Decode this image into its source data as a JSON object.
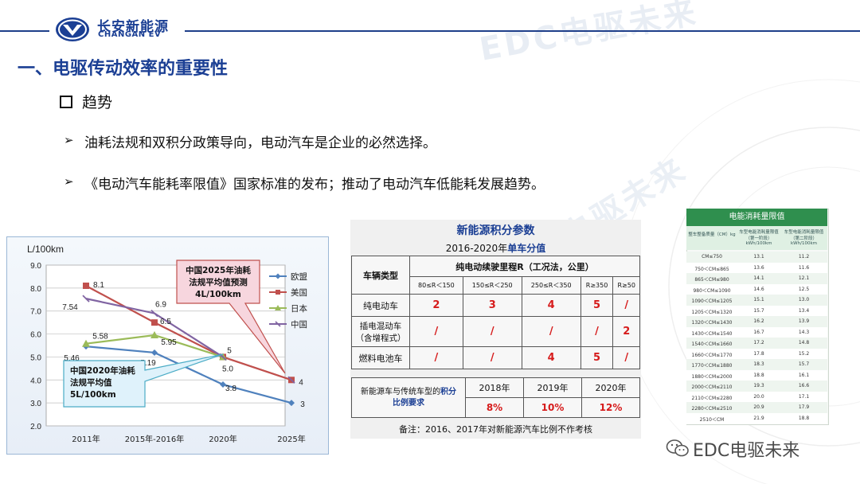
{
  "header": {
    "brand_cn": "长安新能源",
    "brand_en": "CHANGAN EV",
    "watermark": "EDC电驱未来"
  },
  "title": "一、电驱传动效率的重要性",
  "section": {
    "label": "趋势"
  },
  "bullets": [
    "油耗法规和双积分政策导向，电动汽车是企业的必然选择。",
    "《电动汽车能耗率限值》国家标准的发布；推动了电动汽车低能耗发展趋势。"
  ],
  "chart_data": {
    "type": "line",
    "ylabel": "L/100km",
    "ylim": [
      2.0,
      9.0
    ],
    "yticks": [
      "2.0",
      "3.0",
      "4.0",
      "5.0",
      "6.0",
      "7.0",
      "8.0",
      "9.0"
    ],
    "categories": [
      "2011年",
      "2015年-2016年",
      "2020年",
      "2025年"
    ],
    "series": [
      {
        "name": "欧盟",
        "color": "#4f81bd",
        "values": [
          5.46,
          5.19,
          3.8,
          3
        ],
        "labels": [
          "5.46",
          "5.19",
          "3.8",
          "3"
        ]
      },
      {
        "name": "美国",
        "color": "#c0504d",
        "values": [
          8.1,
          6.5,
          5,
          4
        ],
        "labels": [
          "8.1",
          "6.5",
          "5",
          "4"
        ]
      },
      {
        "name": "日本",
        "color": "#9bbb59",
        "values": [
          5.58,
          5.95,
          5.0,
          null
        ],
        "labels": [
          "5.58",
          "5.95",
          "5.0",
          ""
        ]
      },
      {
        "name": "中国",
        "color": "#8064a2",
        "values": [
          7.54,
          6.9,
          5,
          4
        ],
        "labels": [
          "7.54",
          "6.9",
          "",
          ""
        ]
      }
    ],
    "annotations": [
      {
        "lines": [
          "中国2025年油耗",
          "法规平均值预测",
          "4L/100km"
        ]
      },
      {
        "lines": [
          "中国2020年油耗",
          "法规平均值",
          "5L/100km"
        ]
      }
    ]
  },
  "points_table": {
    "title": "新能源积分参数",
    "subtitle_pre": "2016-2020年",
    "subtitle_hl": "单车分值",
    "vehicle_type": "车辆类型",
    "range_header": "纯电动续驶里程R（工况法，公里）",
    "ranges": [
      "80≤R＜150",
      "150≤R＜250",
      "250≤R＜350",
      "R≥350",
      "R≥50"
    ],
    "rows": [
      {
        "type": "纯电动车",
        "values": [
          "2",
          "3",
          "4",
          "5",
          "/"
        ]
      },
      {
        "type": "插电混动车（含增程式）",
        "values": [
          "/",
          "/",
          "/",
          "/",
          "2"
        ]
      },
      {
        "type": "燃料电池车",
        "values": [
          "/",
          "/",
          "4",
          "5",
          "/"
        ]
      }
    ],
    "ratio_label_a": "新能源车与传统车型的",
    "ratio_label_b": "积分",
    "ratio_label_c": "比例要求",
    "years": [
      "2018年",
      "2019年",
      "2020年"
    ],
    "ratios": [
      "8%",
      "10%",
      "12%"
    ],
    "note": "备注：2016、2017年对新能源汽车比例不作考核"
  },
  "energy_table": {
    "title": "电能消耗量限值",
    "col1": "整车整备质量（CM）kg",
    "col2": "车型电能消耗量限值（第一阶段）kWh/100km",
    "col3": "车型电能消耗量限值（第二阶段）kWh/100km",
    "rows": [
      [
        "CM≤750",
        "13.1",
        "11.2"
      ],
      [
        "750＜CM≤865",
        "13.6",
        "11.6"
      ],
      [
        "865＜CM≤980",
        "14.1",
        "12.1"
      ],
      [
        "980＜CM≤1090",
        "14.6",
        "12.5"
      ],
      [
        "1090＜CM≤1205",
        "15.1",
        "13.0"
      ],
      [
        "1205＜CM≤1320",
        "15.7",
        "13.4"
      ],
      [
        "1320＜CM≤1430",
        "16.2",
        "13.9"
      ],
      [
        "1430＜CM≤1540",
        "16.7",
        "14.3"
      ],
      [
        "1540＜CM≤1660",
        "17.2",
        "14.8"
      ],
      [
        "1660＜CM≤1770",
        "17.8",
        "15.2"
      ],
      [
        "1770＜CM≤1880",
        "18.3",
        "15.7"
      ],
      [
        "1880＜CM≤2000",
        "18.8",
        "16.1"
      ],
      [
        "2000＜CM≤2110",
        "19.3",
        "16.6"
      ],
      [
        "2110＜CM≤2280",
        "20.0",
        "17.1"
      ],
      [
        "2280＜CM≤2510",
        "20.9",
        "17.9"
      ],
      [
        "2510＜CM",
        "21.9",
        "18.8"
      ]
    ]
  },
  "footer": {
    "text": "EDC电驱未来"
  }
}
